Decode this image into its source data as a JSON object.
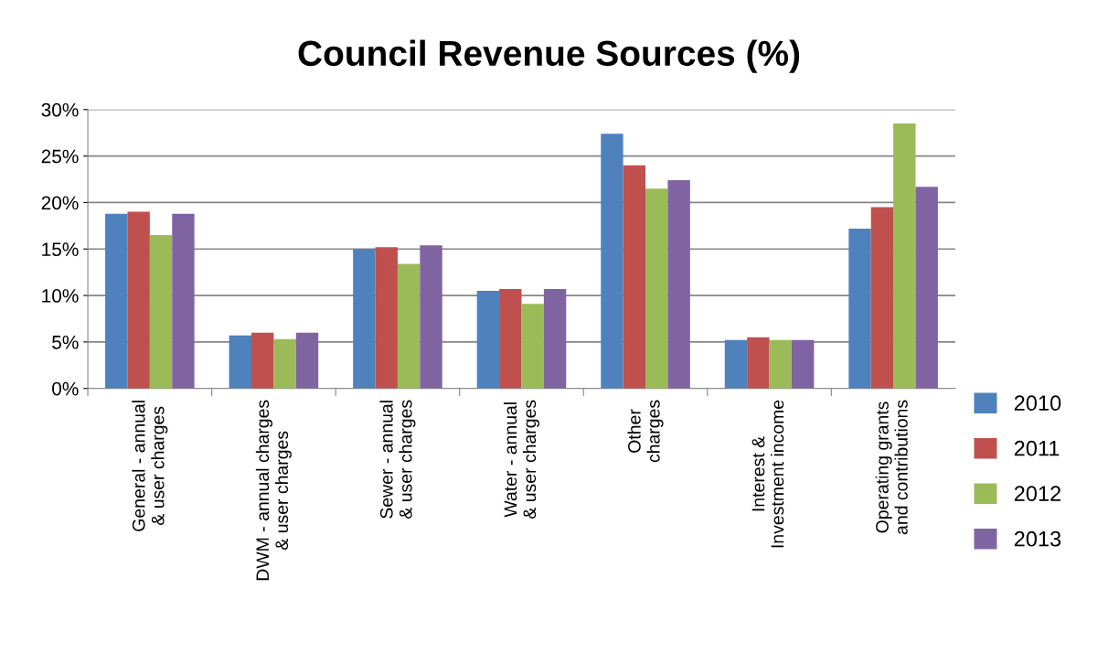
{
  "chart_data": {
    "type": "bar",
    "title": "Council Revenue Sources (%)",
    "categories": [
      "General - annual & user charges",
      "DWM - annual charges & user charges",
      "Sewer - annual & user charges",
      "Water - annual & user charges",
      "Other charges",
      "Interest & Investment income",
      "Operating grants and contributions"
    ],
    "series": [
      {
        "name": "2010",
        "color": "#4f81bd",
        "values": [
          18.8,
          5.7,
          15.0,
          10.5,
          27.4,
          5.2,
          17.2
        ]
      },
      {
        "name": "2011",
        "color": "#c0504d",
        "values": [
          19.0,
          6.0,
          15.2,
          10.7,
          24.0,
          5.5,
          19.5
        ]
      },
      {
        "name": "2012",
        "color": "#9bbb59",
        "values": [
          16.5,
          5.3,
          13.4,
          9.1,
          21.5,
          5.2,
          28.5
        ]
      },
      {
        "name": "2013",
        "color": "#8064a2",
        "values": [
          18.8,
          6.0,
          15.4,
          10.7,
          22.4,
          5.2,
          21.7
        ]
      }
    ],
    "ylim": [
      0,
      30
    ],
    "yticks": [
      {
        "value": 0,
        "label": "0%"
      },
      {
        "value": 5,
        "label": "5%"
      },
      {
        "value": 10,
        "label": "10%"
      },
      {
        "value": 15,
        "label": "15%"
      },
      {
        "value": 20,
        "label": "20%"
      },
      {
        "value": 25,
        "label": "25%"
      },
      {
        "value": 30,
        "label": "30%"
      }
    ],
    "grid": "y",
    "legend": "right"
  }
}
